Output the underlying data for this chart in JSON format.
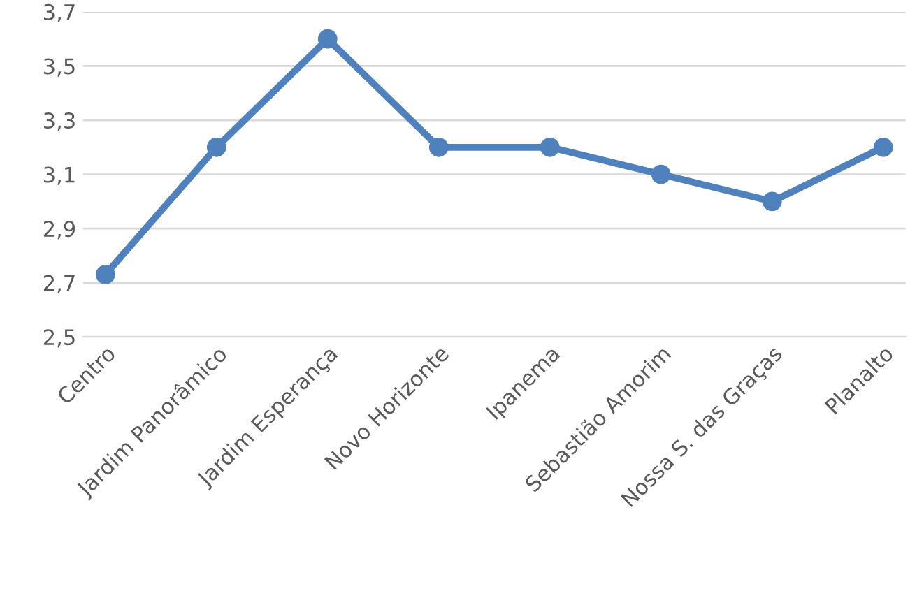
{
  "chart_data": {
    "type": "line",
    "categories": [
      "Centro",
      "Jardim Panorâmico",
      "Jardim Esperança",
      "Novo Horizonte",
      "Ipanema",
      "Sebastião Amorim",
      "Nossa S. das Graças",
      "Planalto"
    ],
    "series": [
      {
        "color": "#4f81bd",
        "values": [
          2.73,
          3.2,
          3.6,
          3.2,
          3.2,
          3.1,
          3.0,
          3.2
        ]
      }
    ],
    "ylim": [
      2.5,
      3.7
    ],
    "yticks": [
      {
        "value": 2.5,
        "label": "2,5"
      },
      {
        "value": 2.7,
        "label": "2,7"
      },
      {
        "value": 2.9,
        "label": "2,9"
      },
      {
        "value": 3.1,
        "label": "3,1"
      },
      {
        "value": 3.3,
        "label": "3,3"
      },
      {
        "value": 3.5,
        "label": "3,5"
      },
      {
        "value": 3.7,
        "label": "3,7"
      }
    ],
    "grid": "y",
    "marker": "circle",
    "line_style": "solid",
    "legend": false
  }
}
